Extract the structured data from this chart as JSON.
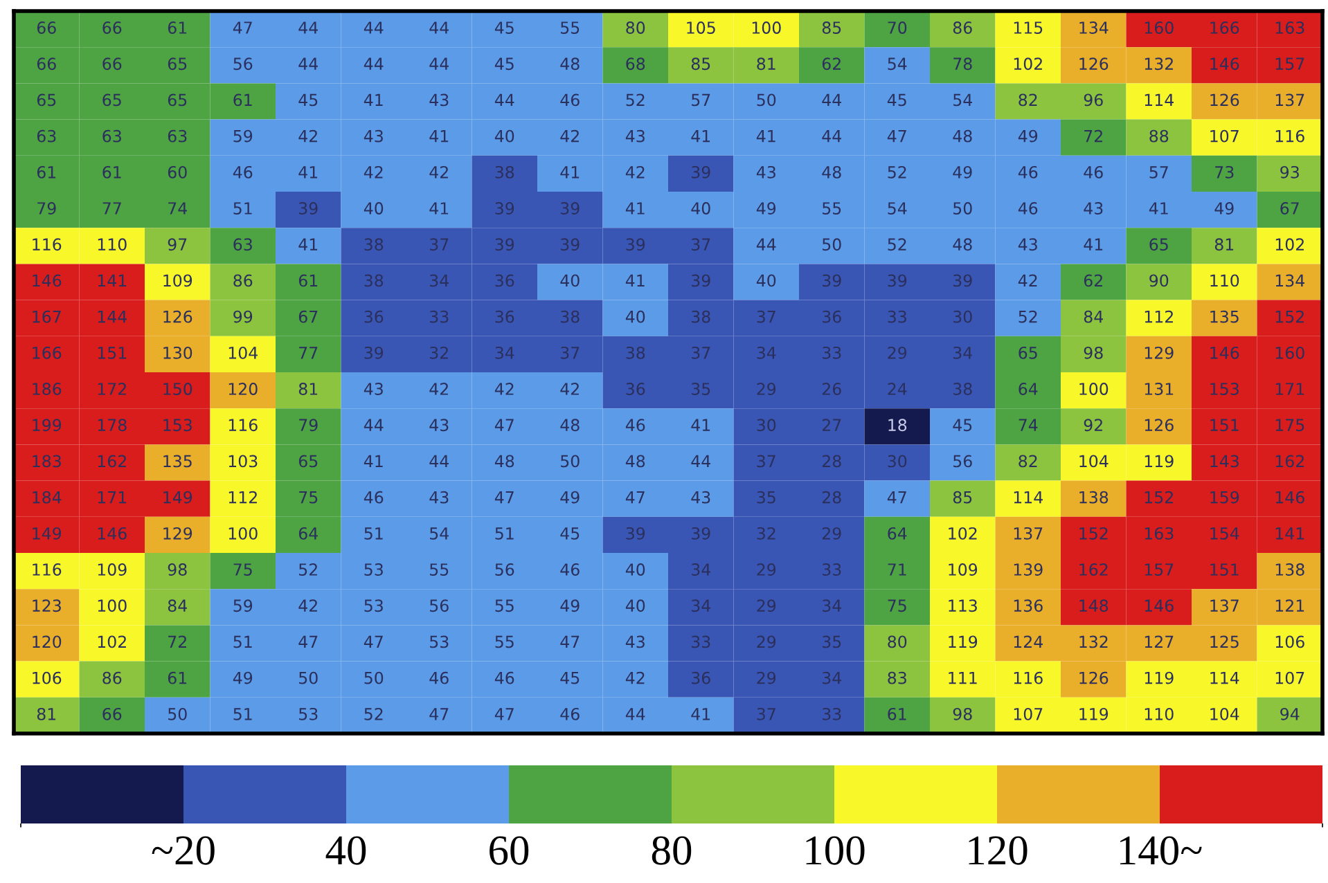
{
  "chart_data": {
    "type": "heatmap",
    "categories": [
      null,
      null,
      null,
      null,
      null,
      null,
      null,
      null,
      null,
      null,
      null,
      null,
      null,
      null,
      null,
      null,
      null,
      null,
      null,
      null
    ],
    "y_categories": [
      null,
      null,
      null,
      null,
      null,
      null,
      null,
      null,
      null,
      null,
      null,
      null,
      null,
      null,
      null,
      null,
      null,
      null,
      null,
      null
    ],
    "cells": [
      [
        66,
        66,
        61,
        47,
        44,
        44,
        44,
        45,
        55,
        80,
        105,
        100,
        85,
        70,
        86,
        115,
        134,
        160,
        166,
        163
      ],
      [
        66,
        66,
        65,
        56,
        44,
        44,
        44,
        45,
        48,
        68,
        85,
        81,
        62,
        54,
        78,
        102,
        126,
        132,
        146,
        157
      ],
      [
        65,
        65,
        65,
        61,
        45,
        41,
        43,
        44,
        46,
        52,
        57,
        50,
        44,
        45,
        54,
        82,
        96,
        114,
        126,
        137
      ],
      [
        63,
        63,
        63,
        59,
        42,
        43,
        41,
        40,
        42,
        43,
        41,
        41,
        44,
        47,
        48,
        49,
        72,
        88,
        107,
        116
      ],
      [
        61,
        61,
        60,
        46,
        41,
        42,
        42,
        38,
        41,
        42,
        39,
        43,
        48,
        52,
        49,
        46,
        46,
        57,
        73,
        93
      ],
      [
        79,
        77,
        74,
        51,
        39,
        40,
        41,
        39,
        39,
        41,
        40,
        49,
        55,
        54,
        50,
        46,
        43,
        41,
        49,
        67
      ],
      [
        116,
        110,
        97,
        63,
        41,
        38,
        37,
        39,
        39,
        39,
        37,
        44,
        50,
        52,
        48,
        43,
        41,
        65,
        81,
        102
      ],
      [
        146,
        141,
        109,
        86,
        61,
        38,
        34,
        36,
        40,
        41,
        39,
        40,
        39,
        39,
        39,
        42,
        62,
        90,
        110,
        134
      ],
      [
        167,
        144,
        126,
        99,
        67,
        36,
        33,
        36,
        38,
        40,
        38,
        37,
        36,
        33,
        30,
        52,
        84,
        112,
        135,
        152
      ],
      [
        166,
        151,
        130,
        104,
        77,
        39,
        32,
        34,
        37,
        38,
        37,
        34,
        33,
        29,
        34,
        65,
        98,
        129,
        146,
        160
      ],
      [
        186,
        172,
        150,
        120,
        81,
        43,
        42,
        42,
        42,
        36,
        35,
        29,
        26,
        24,
        38,
        64,
        100,
        131,
        153,
        171
      ],
      [
        199,
        178,
        153,
        116,
        79,
        44,
        43,
        47,
        48,
        46,
        41,
        30,
        27,
        18,
        45,
        74,
        92,
        126,
        151,
        175
      ],
      [
        183,
        162,
        135,
        103,
        65,
        41,
        44,
        48,
        50,
        48,
        44,
        37,
        28,
        30,
        56,
        82,
        104,
        119,
        143,
        162
      ],
      [
        184,
        171,
        149,
        112,
        75,
        46,
        43,
        47,
        49,
        47,
        43,
        35,
        28,
        47,
        85,
        114,
        138,
        152,
        159,
        146
      ],
      [
        149,
        146,
        129,
        100,
        64,
        51,
        54,
        51,
        45,
        39,
        39,
        32,
        29,
        64,
        102,
        137,
        152,
        163,
        154,
        141
      ],
      [
        116,
        109,
        98,
        75,
        52,
        53,
        55,
        56,
        46,
        40,
        34,
        29,
        33,
        71,
        109,
        139,
        162,
        157,
        151,
        138
      ],
      [
        123,
        100,
        84,
        59,
        42,
        53,
        56,
        55,
        49,
        40,
        34,
        29,
        34,
        75,
        113,
        136,
        148,
        146,
        137,
        121
      ],
      [
        120,
        102,
        72,
        51,
        47,
        47,
        53,
        55,
        47,
        43,
        33,
        29,
        35,
        80,
        119,
        124,
        132,
        127,
        125,
        106
      ],
      [
        106,
        86,
        61,
        49,
        50,
        50,
        46,
        46,
        45,
        42,
        36,
        29,
        34,
        83,
        111,
        116,
        126,
        119,
        114,
        107
      ],
      [
        81,
        66,
        50,
        51,
        53,
        52,
        47,
        47,
        46,
        44,
        41,
        37,
        33,
        61,
        98,
        107,
        119,
        110,
        104,
        94
      ]
    ],
    "cell_labels": [
      [
        "66",
        "66",
        "61",
        "47",
        "44",
        "44",
        "44",
        "45",
        "55",
        "80",
        "105",
        "100",
        "85",
        "70",
        "86",
        "115",
        "134",
        "160",
        "166",
        "163"
      ],
      [
        "66",
        "66",
        "65",
        "56",
        "44",
        "44",
        "44",
        "45",
        "48",
        "68",
        "85",
        "81",
        "62",
        "54",
        "78",
        "102",
        "126",
        "132",
        "146",
        "157"
      ],
      [
        "65",
        "65",
        "65",
        "61",
        "45",
        "41",
        "43",
        "44",
        "46",
        "52",
        "57",
        "50",
        "44",
        "45",
        "54",
        "82",
        "96",
        "114",
        "126",
        "137"
      ],
      [
        "63",
        "63",
        "63",
        "59",
        "42",
        "43",
        "41",
        "40",
        "42",
        "43",
        "41",
        "41",
        "44",
        "47",
        "48",
        "49",
        "72",
        "88",
        "107",
        "116"
      ],
      [
        "61",
        "61",
        "60",
        "46",
        "41",
        "42",
        "42",
        "38",
        "41",
        "42",
        "39",
        "43",
        "48",
        "52",
        "49",
        "46",
        "46",
        "57",
        "73",
        "93"
      ],
      [
        "79",
        "77",
        "74",
        "51",
        "39",
        "40",
        "41",
        "39",
        "39",
        "41",
        "40",
        "49",
        "55",
        "54",
        "50",
        "46",
        "43",
        "41",
        "49",
        "67"
      ],
      [
        "116",
        "110",
        "97",
        "63",
        "41",
        "38",
        "37",
        "39",
        "39",
        "39",
        "37",
        "44",
        "50",
        "52",
        "48",
        "43",
        "41",
        "65",
        "81",
        "102"
      ],
      [
        "146",
        "141",
        "109",
        "86",
        "61",
        "38",
        "34",
        "36",
        "40",
        "41",
        "39",
        "40",
        "39",
        "39",
        "39",
        "42",
        "62",
        "90",
        "110",
        "134"
      ],
      [
        "167",
        "144",
        "126",
        "99",
        "67",
        "36",
        "33",
        "36",
        "38",
        "40",
        "38",
        "37",
        "36",
        "33",
        "30",
        "52",
        "84",
        "112",
        "135",
        "152"
      ],
      [
        "166",
        "151",
        "130",
        "104",
        "77",
        "39",
        "32",
        "34",
        "37",
        "38",
        "37",
        "34",
        "33",
        "29",
        "34",
        "65",
        "98",
        "129",
        "146",
        "160"
      ],
      [
        "186",
        "172",
        "150",
        "120",
        "81",
        "43",
        "42",
        "42",
        "42",
        "36",
        "35",
        "29",
        "26",
        "24",
        "38",
        "64",
        "100",
        "131",
        "153",
        "171"
      ],
      [
        "199",
        "178",
        "153",
        "116",
        "79",
        "44",
        "43",
        "47",
        "48",
        "46",
        "41",
        "30",
        "27",
        "18",
        "45",
        "74",
        "92",
        "126",
        "151",
        "175"
      ],
      [
        "183",
        "162",
        "135",
        "103",
        "65",
        "41",
        "44",
        "48",
        "50",
        "48",
        "44",
        "37",
        "28",
        "30",
        "56",
        "82",
        "104",
        "119",
        "143",
        "162"
      ],
      [
        "184",
        "171",
        "149",
        "112",
        "75",
        "46",
        "43",
        "47",
        "49",
        "47",
        "43",
        "35",
        "28",
        "47",
        "85",
        "114",
        "138",
        "152",
        "159",
        "146"
      ],
      [
        "149",
        "146",
        "129",
        "100",
        "64",
        "51",
        "54",
        "51",
        "45",
        "39",
        "39",
        "32",
        "29",
        "64",
        "102",
        "137",
        "152",
        "163",
        "154",
        "141"
      ],
      [
        "116",
        "109",
        "98",
        "75",
        "52",
        "53",
        "55",
        "56",
        "46",
        "40",
        "34",
        "29",
        "33",
        "71",
        "109",
        "139",
        "162",
        "157",
        "151",
        "138"
      ],
      [
        "123",
        "100",
        "84",
        "59",
        "42",
        "53",
        "56",
        "55",
        "49",
        "40",
        "34",
        "29",
        "34",
        "75",
        "113",
        "136",
        "148",
        "146",
        "137",
        "121"
      ],
      [
        "120",
        "102",
        "72",
        "51",
        "47",
        "47",
        "53",
        "55",
        "47",
        "43",
        "33",
        "29",
        "35",
        "80",
        "119",
        "124",
        "132",
        "127",
        "125",
        "106"
      ],
      [
        "106",
        "86",
        "61",
        "49",
        "50",
        "50",
        "46",
        "46",
        "45",
        "42",
        "36",
        "29",
        "34",
        "83",
        "111",
        "116",
        "126",
        "119",
        "114",
        "107"
      ],
      [
        "81",
        "66",
        "50",
        "51",
        "53",
        "52",
        "47",
        "47",
        "46",
        "44",
        "41",
        "37",
        "33",
        "61",
        "98",
        "107",
        "119",
        "110",
        "104",
        "94"
      ]
    ],
    "colors": [
      "#141a4e",
      "#3a56b5",
      "#5b9be8",
      "#4ea343",
      "#8cc43f",
      "#f7f72a",
      "#e9ae2a",
      "#d91c1c"
    ],
    "clim": [
      0,
      160
    ],
    "cticks": [
      {
        "value": 20,
        "label": "~20"
      },
      40,
      60,
      80,
      100,
      120,
      {
        "value": 140,
        "label": "140~"
      }
    ]
  }
}
